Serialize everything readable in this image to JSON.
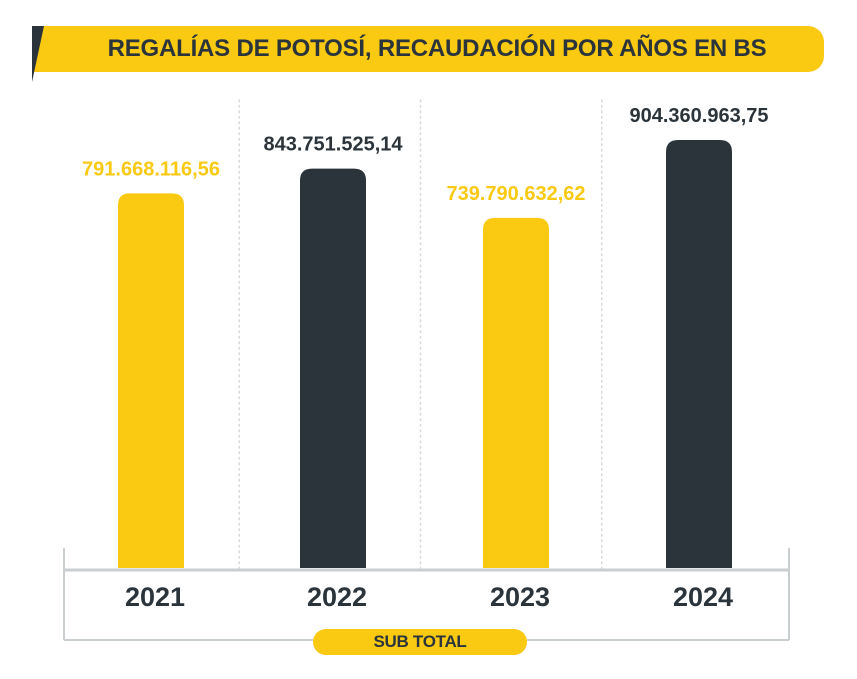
{
  "title": "REGALÍAS DE POTOSÍ, RECAUDACIÓN POR AÑOS EN BS",
  "footer_label": "SUB TOTAL",
  "colors": {
    "yellow": "#fac912",
    "dark": "#2b343b",
    "axis": "#c9ced1",
    "grid": "#d4d8da"
  },
  "chart_data": {
    "type": "bar",
    "title": "REGALÍAS DE POTOSÍ, RECAUDACIÓN POR AÑOS EN BS",
    "xlabel": "SUB TOTAL",
    "ylabel": "",
    "categories": [
      "2021",
      "2022",
      "2023",
      "2024"
    ],
    "values": [
      791668116.56,
      843751525.14,
      739790632.62,
      904360963.75
    ],
    "value_labels": [
      "791.668.116,56",
      "843.751.525,14",
      "739.790.632,62",
      "904.360.963,75"
    ],
    "bar_colors": [
      "#fac912",
      "#2b343b",
      "#fac912",
      "#2b343b"
    ],
    "label_colors": [
      "#fac912",
      "#2b343b",
      "#fac912",
      "#2b343b"
    ],
    "grid": "vertical dotted separators",
    "legend": "none"
  }
}
